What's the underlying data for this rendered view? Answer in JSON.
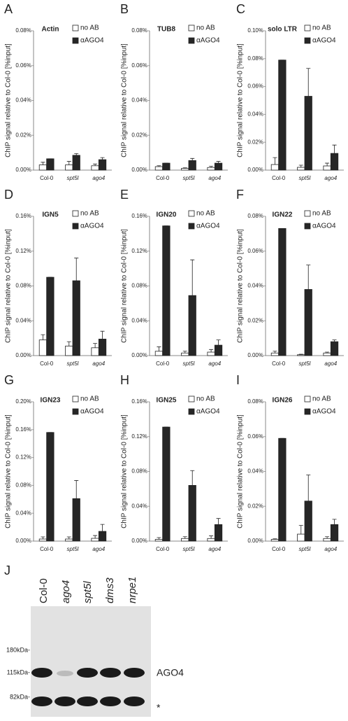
{
  "chart_data": [
    {
      "type": "bar",
      "panel": "A",
      "title": "Actin",
      "ylabel": "ChIP signal relative to Col-0 [%input]",
      "categories": [
        "Col-0",
        "spt5l",
        "ago4"
      ],
      "series": [
        {
          "name": "no AB",
          "color": "#ffffff",
          "values": [
            0.003,
            0.003,
            0.0025
          ],
          "errors": [
            0.0015,
            0.002,
            0.001
          ]
        },
        {
          "name": "αAGO4",
          "color": "#262626",
          "values": [
            0.0065,
            0.0085,
            0.006
          ],
          "errors": [
            0,
            0.001,
            0.0012
          ]
        }
      ],
      "ylim": [
        0,
        0.08
      ],
      "yticks": [
        {
          "value": 0,
          "label": "0.00%"
        },
        {
          "value": 0.02,
          "label": "0.02%"
        },
        {
          "value": 0.04,
          "label": "0.04%"
        },
        {
          "value": 0.06,
          "label": "0.06%"
        },
        {
          "value": 0.08,
          "label": "0.08%"
        }
      ]
    },
    {
      "type": "bar",
      "panel": "B",
      "title": "TUB8",
      "ylabel": "ChIP signal relative to Col-0 [%input]",
      "categories": [
        "Col-0",
        "spt5l",
        "ago4"
      ],
      "series": [
        {
          "name": "no AB",
          "color": "#ffffff",
          "values": [
            0.002,
            0.001,
            0.0015
          ],
          "errors": [
            0.0005,
            0.0003,
            0.0007
          ]
        },
        {
          "name": "αAGO4",
          "color": "#262626",
          "values": [
            0.004,
            0.0055,
            0.004
          ],
          "errors": [
            0,
            0.0012,
            0.001
          ]
        }
      ],
      "ylim": [
        0,
        0.08
      ],
      "yticks": [
        {
          "value": 0,
          "label": "0.00%"
        },
        {
          "value": 0.02,
          "label": "0.02%"
        },
        {
          "value": 0.04,
          "label": "0.04%"
        },
        {
          "value": 0.06,
          "label": "0.06%"
        },
        {
          "value": 0.08,
          "label": "0.08%"
        }
      ]
    },
    {
      "type": "bar",
      "panel": "C",
      "title": "solo LTR",
      "ylabel": "ChIP signal relative to Col-0 [%input]",
      "categories": [
        "Col-0",
        "spt5l",
        "ago4"
      ],
      "series": [
        {
          "name": "no AB",
          "color": "#ffffff",
          "values": [
            0.004,
            0.002,
            0.003
          ],
          "errors": [
            0.005,
            0.0015,
            0.002
          ]
        },
        {
          "name": "αAGO4",
          "color": "#262626",
          "values": [
            0.079,
            0.053,
            0.012
          ],
          "errors": [
            0,
            0.02,
            0.006
          ]
        }
      ],
      "ylim": [
        0,
        0.1
      ],
      "yticks": [
        {
          "value": 0,
          "label": "0.00%"
        },
        {
          "value": 0.02,
          "label": "0.02%"
        },
        {
          "value": 0.04,
          "label": "0.04%"
        },
        {
          "value": 0.06,
          "label": "0.06%"
        },
        {
          "value": 0.08,
          "label": "0.08%"
        },
        {
          "value": 0.1,
          "label": "0.10%"
        }
      ]
    },
    {
      "type": "bar",
      "panel": "D",
      "title": "IGN5",
      "ylabel": "ChIP signal relative to Col-0 [%input]",
      "categories": [
        "Col-0",
        "spt5l",
        "ago4"
      ],
      "series": [
        {
          "name": "no AB",
          "color": "#ffffff",
          "values": [
            0.018,
            0.011,
            0.009
          ],
          "errors": [
            0.006,
            0.005,
            0.005
          ]
        },
        {
          "name": "αAGO4",
          "color": "#262626",
          "values": [
            0.09,
            0.086,
            0.019
          ],
          "errors": [
            0,
            0.026,
            0.009
          ]
        }
      ],
      "ylim": [
        0,
        0.16
      ],
      "yticks": [
        {
          "value": 0,
          "label": "0.00%"
        },
        {
          "value": 0.04,
          "label": "0.04%"
        },
        {
          "value": 0.08,
          "label": "0.08%"
        },
        {
          "value": 0.12,
          "label": "0.12%"
        },
        {
          "value": 0.16,
          "label": "0.16%"
        }
      ]
    },
    {
      "type": "bar",
      "panel": "E",
      "title": "IGN20",
      "ylabel": "ChIP signal relative to Col-0 [%input]",
      "categories": [
        "Col-0",
        "spt5l",
        "ago4"
      ],
      "series": [
        {
          "name": "no AB",
          "color": "#ffffff",
          "values": [
            0.005,
            0.003,
            0.004
          ],
          "errors": [
            0.005,
            0.002,
            0.003
          ]
        },
        {
          "name": "αAGO4",
          "color": "#262626",
          "values": [
            0.149,
            0.069,
            0.012
          ],
          "errors": [
            0,
            0.041,
            0.006
          ]
        }
      ],
      "ylim": [
        0,
        0.16
      ],
      "yticks": [
        {
          "value": 0,
          "label": "0.00%"
        },
        {
          "value": 0.04,
          "label": "0.04%"
        },
        {
          "value": 0.08,
          "label": "0.08%"
        },
        {
          "value": 0.12,
          "label": "0.12%"
        },
        {
          "value": 0.16,
          "label": "0.16%"
        }
      ]
    },
    {
      "type": "bar",
      "panel": "F",
      "title": "IGN22",
      "ylabel": "ChIP signal relative to Col-0 [%input]",
      "categories": [
        "Col-0",
        "spt5l",
        "ago4"
      ],
      "series": [
        {
          "name": "no AB",
          "color": "#ffffff",
          "values": [
            0.0015,
            0.0005,
            0.0015
          ],
          "errors": [
            0.001,
            0.0003,
            0.0005
          ]
        },
        {
          "name": "αAGO4",
          "color": "#262626",
          "values": [
            0.073,
            0.038,
            0.008
          ],
          "errors": [
            0,
            0.014,
            0.001
          ]
        }
      ],
      "ylim": [
        0,
        0.08
      ],
      "yticks": [
        {
          "value": 0,
          "label": "0.00%"
        },
        {
          "value": 0.02,
          "label": "0.02%"
        },
        {
          "value": 0.04,
          "label": "0.04%"
        },
        {
          "value": 0.06,
          "label": "0.06%"
        },
        {
          "value": 0.08,
          "label": "0.08%"
        }
      ]
    },
    {
      "type": "bar",
      "panel": "G",
      "title": "IGN23",
      "ylabel": "ChIP signal relative to Col-0 [%input]",
      "categories": [
        "Col-0",
        "spt5l",
        "ago4"
      ],
      "series": [
        {
          "name": "no AB",
          "color": "#ffffff",
          "values": [
            0.003,
            0.003,
            0.004
          ],
          "errors": [
            0.003,
            0.003,
            0.004
          ]
        },
        {
          "name": "αAGO4",
          "color": "#262626",
          "values": [
            0.156,
            0.061,
            0.014
          ],
          "errors": [
            0,
            0.026,
            0.01
          ]
        }
      ],
      "ylim": [
        0,
        0.2
      ],
      "yticks": [
        {
          "value": 0,
          "label": "0.00%"
        },
        {
          "value": 0.04,
          "label": "0.04%"
        },
        {
          "value": 0.08,
          "label": "0.08%"
        },
        {
          "value": 0.12,
          "label": "0.12%"
        },
        {
          "value": 0.16,
          "label": "0.16%"
        },
        {
          "value": 0.2,
          "label": "0.20%"
        }
      ]
    },
    {
      "type": "bar",
      "panel": "H",
      "title": "IGN25",
      "ylabel": "ChIP signal relative to Col-0 [%input]",
      "categories": [
        "Col-0",
        "spt5l",
        "ago4"
      ],
      "series": [
        {
          "name": "no AB",
          "color": "#ffffff",
          "values": [
            0.002,
            0.003,
            0.003
          ],
          "errors": [
            0.002,
            0.002,
            0.003
          ]
        },
        {
          "name": "αAGO4",
          "color": "#262626",
          "values": [
            0.131,
            0.064,
            0.019
          ],
          "errors": [
            0,
            0.017,
            0.007
          ]
        }
      ],
      "ylim": [
        0,
        0.16
      ],
      "yticks": [
        {
          "value": 0,
          "label": "0.00%"
        },
        {
          "value": 0.04,
          "label": "0.04%"
        },
        {
          "value": 0.08,
          "label": "0.08%"
        },
        {
          "value": 0.12,
          "label": "0.12%"
        },
        {
          "value": 0.16,
          "label": "0.16%"
        }
      ]
    },
    {
      "type": "bar",
      "panel": "I",
      "title": "IGN26",
      "ylabel": "ChIP signal relative to Col-0 [%input]",
      "categories": [
        "Col-0",
        "spt5l",
        "ago4"
      ],
      "series": [
        {
          "name": "no AB",
          "color": "#ffffff",
          "values": [
            0.001,
            0.004,
            0.0015
          ],
          "errors": [
            0.0003,
            0.005,
            0.001
          ]
        },
        {
          "name": "αAGO4",
          "color": "#262626",
          "values": [
            0.059,
            0.023,
            0.0095
          ],
          "errors": [
            0,
            0.015,
            0.003
          ]
        }
      ],
      "ylim": [
        0,
        0.08
      ],
      "yticks": [
        {
          "value": 0,
          "label": "0.00%"
        },
        {
          "value": 0.02,
          "label": "0.02%"
        },
        {
          "value": 0.04,
          "label": "0.04%"
        },
        {
          "value": 0.06,
          "label": "0.06%"
        },
        {
          "value": 0.08,
          "label": "0.08%"
        }
      ]
    }
  ],
  "blot": {
    "panel": "J",
    "lanes": [
      "Col-0",
      "ago4",
      "spt5l",
      "dms3",
      "nrpe1"
    ],
    "markers": [
      "180kDa-",
      "115kDa-",
      "82kDa-"
    ],
    "band_label": "AGO4",
    "star": "*"
  }
}
